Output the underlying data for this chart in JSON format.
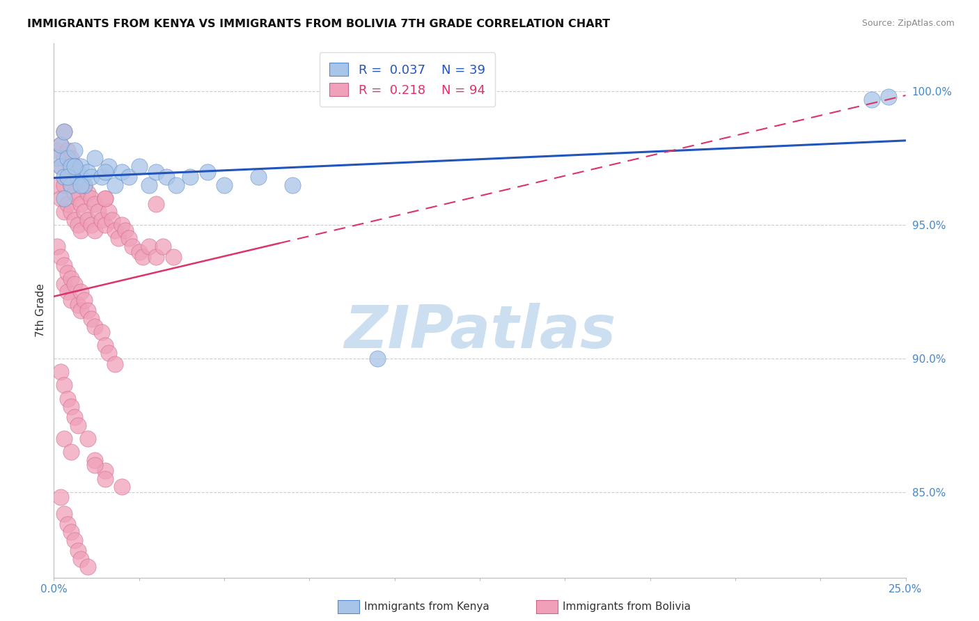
{
  "title": "IMMIGRANTS FROM KENYA VS IMMIGRANTS FROM BOLIVIA 7TH GRADE CORRELATION CHART",
  "source": "Source: ZipAtlas.com",
  "ylabel": "7th Grade",
  "xlim": [
    0.0,
    0.25
  ],
  "ylim": [
    0.818,
    1.018
  ],
  "xtick_positions": [
    0.0,
    0.025,
    0.05,
    0.075,
    0.1,
    0.125,
    0.15,
    0.175,
    0.2,
    0.225,
    0.25
  ],
  "xtick_labels_sparse": {
    "0.0": "0.0%",
    "0.25": "25.0%"
  },
  "yticks": [
    0.85,
    0.9,
    0.95,
    1.0
  ],
  "ytick_labels": [
    "85.0%",
    "90.0%",
    "95.0%",
    "100.0%"
  ],
  "kenya_color": "#a8c4e8",
  "kenya_edge": "#5588cc",
  "bolivia_color": "#f0a0b8",
  "bolivia_edge": "#cc6688",
  "trend_kenya_color": "#2255bb",
  "trend_bolivia_color": "#dd3366",
  "kenya_R": 0.037,
  "kenya_N": 39,
  "bolivia_R": 0.218,
  "bolivia_N": 94,
  "legend_label_kenya": "Immigrants from Kenya",
  "legend_label_bolivia": "Immigrants from Bolivia",
  "watermark": "ZIPatlas",
  "watermark_color": "#ccdff0",
  "kenya_x": [
    0.001,
    0.002,
    0.002,
    0.003,
    0.003,
    0.004,
    0.005,
    0.005,
    0.006,
    0.007,
    0.007,
    0.008,
    0.009,
    0.01,
    0.011,
    0.012,
    0.014,
    0.016,
    0.018,
    0.02,
    0.022,
    0.025,
    0.028,
    0.03,
    0.033,
    0.036,
    0.04,
    0.045,
    0.05,
    0.06,
    0.07,
    0.095,
    0.24,
    0.245,
    0.003,
    0.004,
    0.006,
    0.008,
    0.015
  ],
  "kenya_y": [
    0.975,
    0.98,
    0.972,
    0.985,
    0.968,
    0.975,
    0.972,
    0.965,
    0.978,
    0.97,
    0.968,
    0.972,
    0.965,
    0.97,
    0.968,
    0.975,
    0.968,
    0.972,
    0.965,
    0.97,
    0.968,
    0.972,
    0.965,
    0.97,
    0.968,
    0.965,
    0.968,
    0.97,
    0.965,
    0.968,
    0.965,
    0.9,
    0.997,
    0.998,
    0.96,
    0.968,
    0.972,
    0.965,
    0.97
  ],
  "bolivia_x": [
    0.001,
    0.001,
    0.002,
    0.002,
    0.002,
    0.003,
    0.003,
    0.003,
    0.003,
    0.004,
    0.004,
    0.004,
    0.005,
    0.005,
    0.005,
    0.006,
    0.006,
    0.006,
    0.007,
    0.007,
    0.007,
    0.008,
    0.008,
    0.008,
    0.009,
    0.009,
    0.01,
    0.01,
    0.011,
    0.011,
    0.012,
    0.012,
    0.013,
    0.014,
    0.015,
    0.015,
    0.016,
    0.017,
    0.018,
    0.019,
    0.02,
    0.021,
    0.022,
    0.023,
    0.025,
    0.026,
    0.028,
    0.03,
    0.032,
    0.035,
    0.001,
    0.002,
    0.003,
    0.003,
    0.004,
    0.004,
    0.005,
    0.005,
    0.006,
    0.007,
    0.008,
    0.008,
    0.009,
    0.01,
    0.011,
    0.012,
    0.014,
    0.015,
    0.016,
    0.018,
    0.002,
    0.003,
    0.004,
    0.005,
    0.006,
    0.007,
    0.01,
    0.012,
    0.015,
    0.02,
    0.002,
    0.003,
    0.004,
    0.005,
    0.006,
    0.007,
    0.008,
    0.01,
    0.012,
    0.015,
    0.003,
    0.005,
    0.015,
    0.03
  ],
  "bolivia_y": [
    0.978,
    0.965,
    0.98,
    0.972,
    0.96,
    0.985,
    0.975,
    0.965,
    0.955,
    0.978,
    0.968,
    0.958,
    0.975,
    0.965,
    0.955,
    0.972,
    0.962,
    0.952,
    0.97,
    0.96,
    0.95,
    0.968,
    0.958,
    0.948,
    0.965,
    0.955,
    0.962,
    0.952,
    0.96,
    0.95,
    0.958,
    0.948,
    0.955,
    0.952,
    0.96,
    0.95,
    0.955,
    0.952,
    0.948,
    0.945,
    0.95,
    0.948,
    0.945,
    0.942,
    0.94,
    0.938,
    0.942,
    0.938,
    0.942,
    0.938,
    0.942,
    0.938,
    0.935,
    0.928,
    0.932,
    0.925,
    0.93,
    0.922,
    0.928,
    0.92,
    0.925,
    0.918,
    0.922,
    0.918,
    0.915,
    0.912,
    0.91,
    0.905,
    0.902,
    0.898,
    0.895,
    0.89,
    0.885,
    0.882,
    0.878,
    0.875,
    0.87,
    0.862,
    0.858,
    0.852,
    0.848,
    0.842,
    0.838,
    0.835,
    0.832,
    0.828,
    0.825,
    0.822,
    0.86,
    0.855,
    0.87,
    0.865,
    0.96,
    0.958
  ]
}
